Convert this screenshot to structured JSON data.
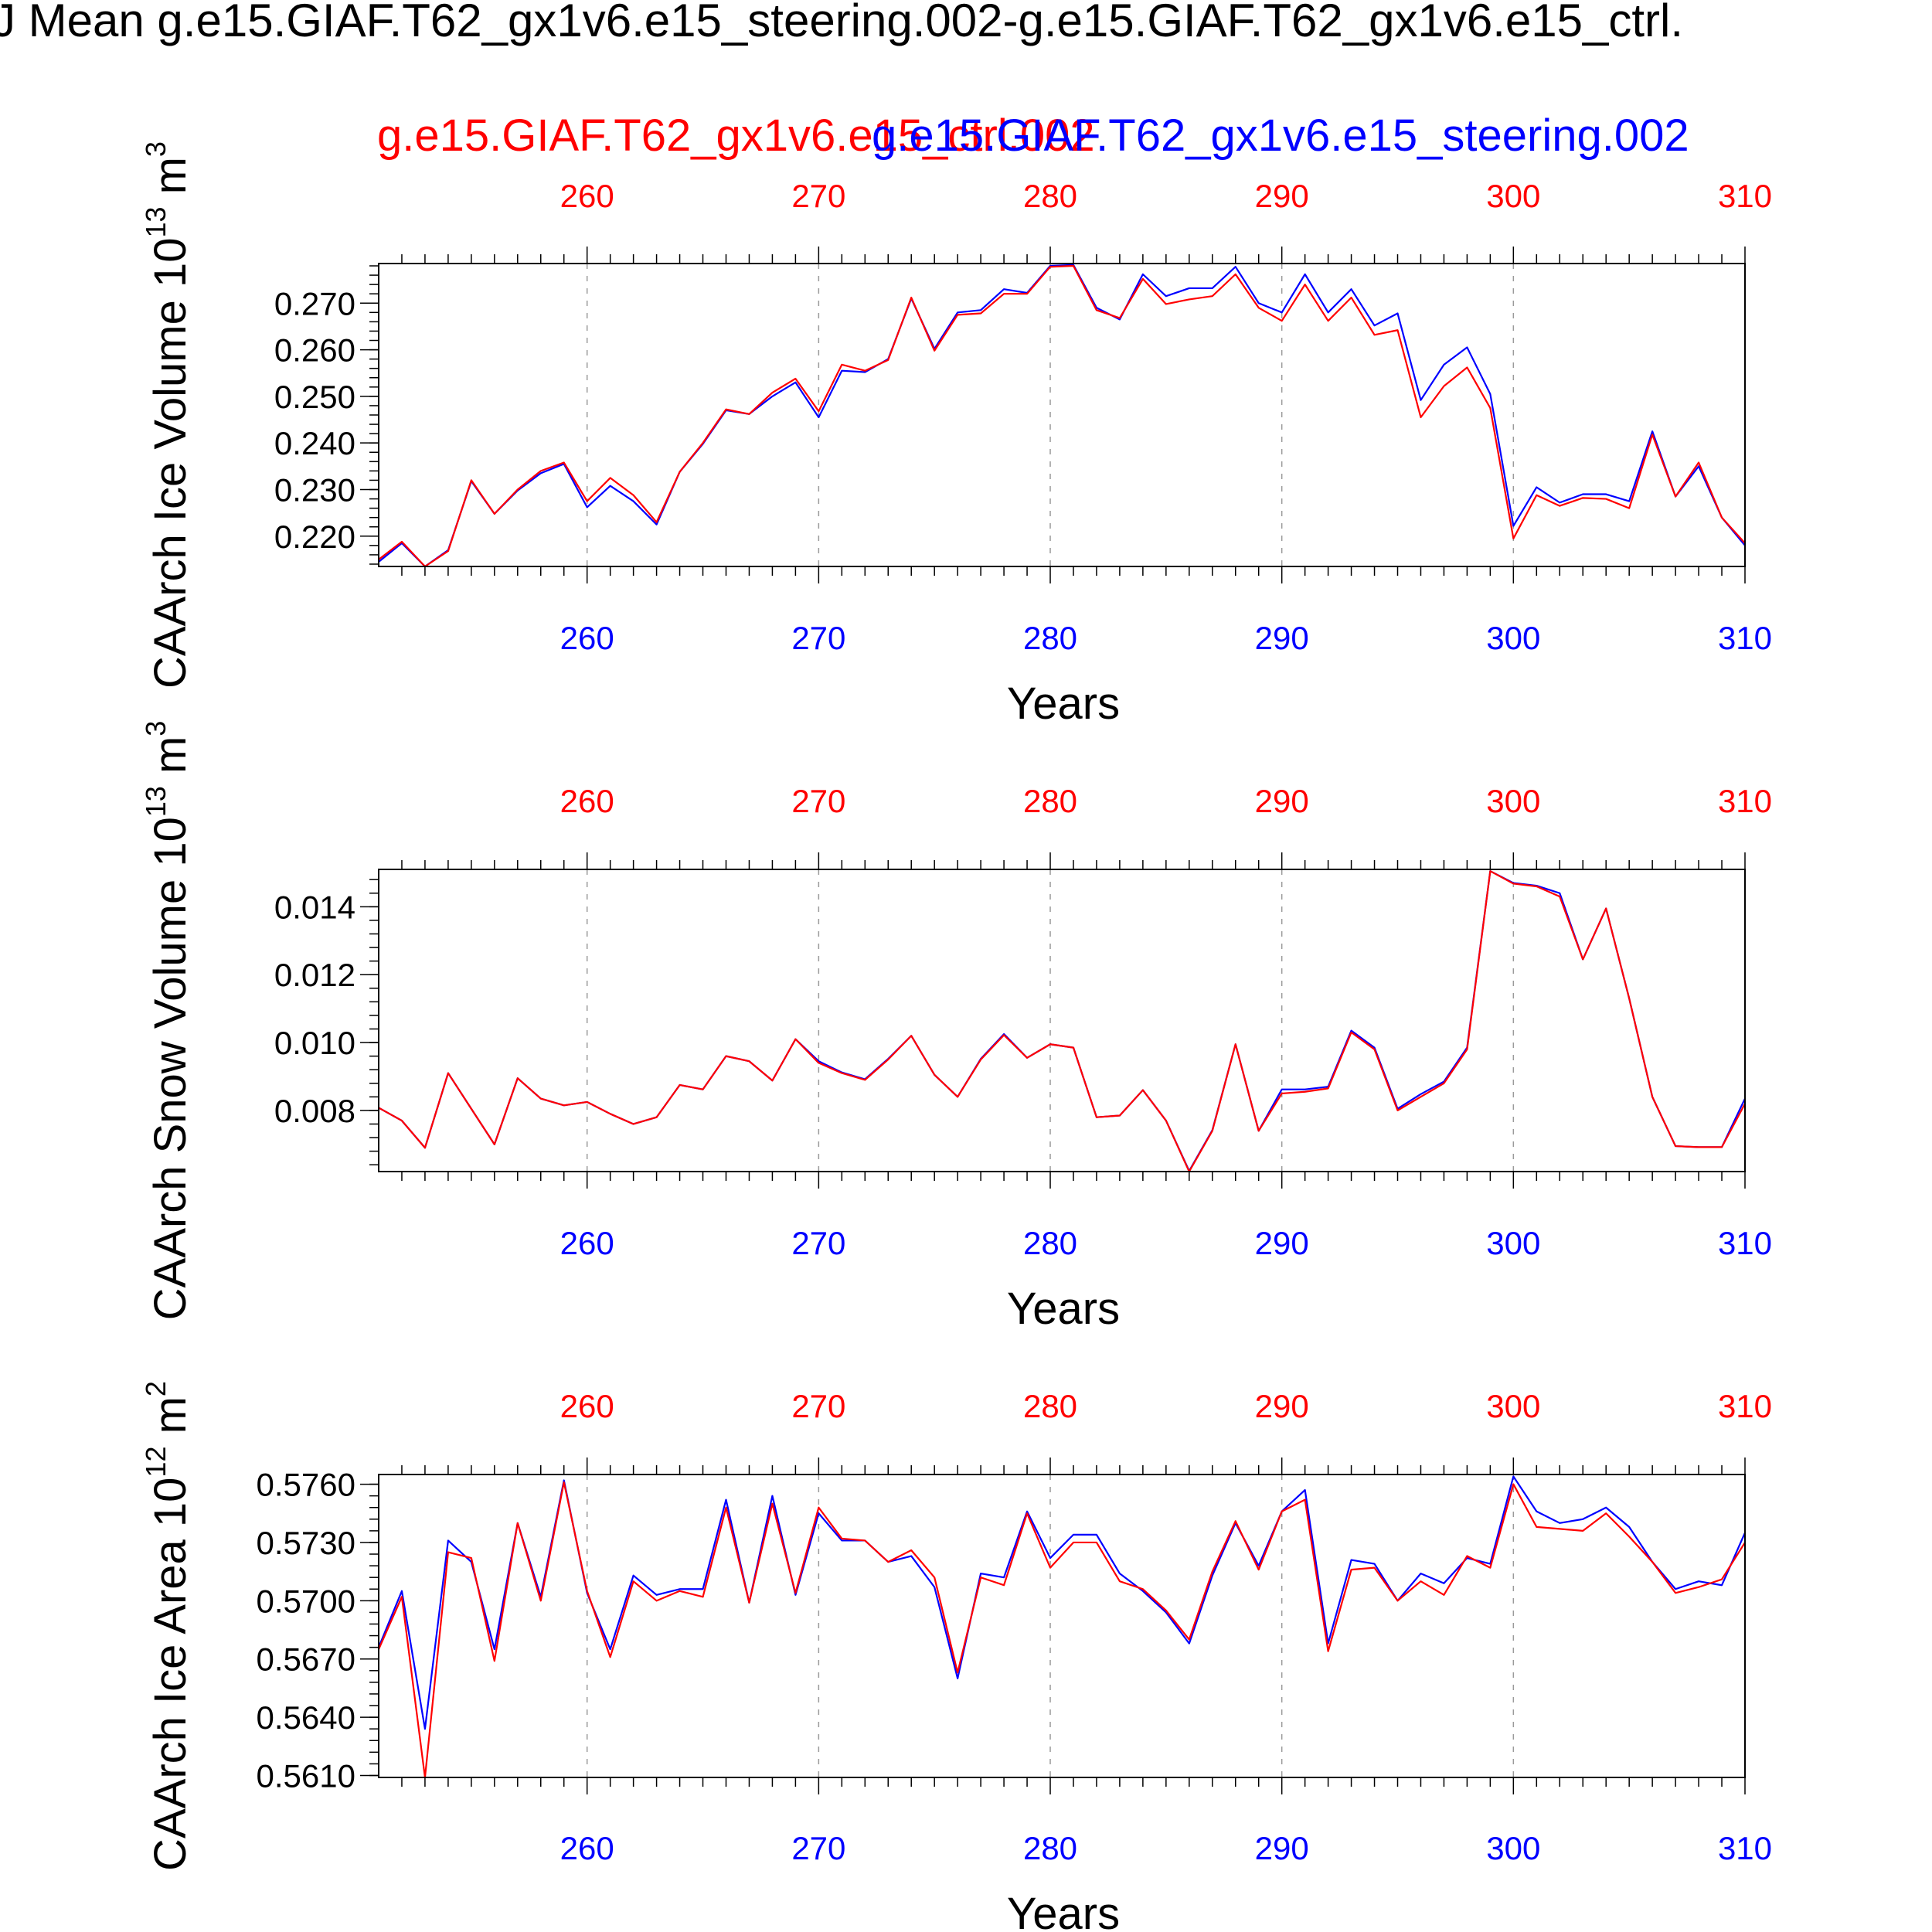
{
  "title": "J Mean g.e15.GIAF.T62_gx1v6.e15_steering.002-g.e15.GIAF.T62_gx1v6.e15_ctrl.",
  "legend": {
    "red_run": "g.e15.GIAF.T62_gx1v6.e15_ctrl.002",
    "blue_run": "g.e15.GIAF.T62_gx1v6.e15_steering.002"
  },
  "colors": {
    "ctrl": "#ff0000",
    "steering": "#0000ff"
  },
  "chart_data": [
    {
      "type": "line",
      "ylabel": "CAArch Ice Volume 10^13 m^3",
      "ylabel_main": "CAArch Ice Volume 10",
      "ylabel_exp": "13",
      "ylabel_unit": " m",
      "ylabel_unit_exp": "3",
      "xlabel": "Years",
      "xlim": [
        251,
        310
      ],
      "ylim": [
        0.2135,
        0.2785
      ],
      "yticks": [
        0.22,
        0.23,
        0.24,
        0.25,
        0.26,
        0.27
      ],
      "ytick_labels": [
        "0.220",
        "0.230",
        "0.240",
        "0.250",
        "0.260",
        "0.270"
      ],
      "yminor_step": 0.002,
      "xticks": [
        260,
        270,
        280,
        290,
        300,
        310
      ],
      "xtick_labels": [
        "260",
        "270",
        "280",
        "290",
        "300",
        "310"
      ],
      "x": [
        251,
        252,
        253,
        254,
        255,
        256,
        257,
        258,
        259,
        260,
        261,
        262,
        263,
        264,
        265,
        266,
        267,
        268,
        269,
        270,
        271,
        272,
        273,
        274,
        275,
        276,
        277,
        278,
        279,
        280,
        281,
        282,
        283,
        284,
        285,
        286,
        287,
        288,
        289,
        290,
        291,
        292,
        293,
        294,
        295,
        296,
        297,
        298,
        299,
        300,
        301,
        302,
        303,
        304,
        305,
        306,
        307,
        308,
        309,
        310
      ],
      "series": [
        {
          "name": "g.e15.GIAF.T62_gx1v6.e15_ctrl.002",
          "color": "#ff0000",
          "values": [
            0.215,
            0.2188,
            0.2135,
            0.2168,
            0.232,
            0.2248,
            0.23,
            0.234,
            0.2358,
            0.2275,
            0.2325,
            0.2288,
            0.223,
            0.2338,
            0.24,
            0.2472,
            0.2462,
            0.2508,
            0.2538,
            0.2468,
            0.2568,
            0.2555,
            0.2578,
            0.2712,
            0.2598,
            0.2675,
            0.2678,
            0.272,
            0.272,
            0.2778,
            0.278,
            0.2685,
            0.2668,
            0.2752,
            0.2698,
            0.2708,
            0.2715,
            0.2762,
            0.269,
            0.2662,
            0.274,
            0.2662,
            0.2712,
            0.2632,
            0.2642,
            0.2455,
            0.2522,
            0.2562,
            0.2475,
            0.2195,
            0.2288,
            0.2265,
            0.2282,
            0.228,
            0.226,
            0.2418,
            0.2285,
            0.2358,
            0.224,
            0.2185
          ]
        },
        {
          "name": "g.e15.GIAF.T62_gx1v6.e15_steering.002",
          "color": "#0000ff",
          "values": [
            0.2145,
            0.2185,
            0.2135,
            0.217,
            0.2318,
            0.2248,
            0.2298,
            0.2335,
            0.2355,
            0.2262,
            0.2308,
            0.2275,
            0.2225,
            0.2338,
            0.2398,
            0.247,
            0.2462,
            0.25,
            0.253,
            0.2455,
            0.2555,
            0.2552,
            0.258,
            0.271,
            0.2602,
            0.268,
            0.2685,
            0.273,
            0.2722,
            0.278,
            0.2782,
            0.269,
            0.2665,
            0.2762,
            0.2715,
            0.2732,
            0.2732,
            0.2778,
            0.27,
            0.268,
            0.2762,
            0.268,
            0.273,
            0.2652,
            0.2678,
            0.2492,
            0.2568,
            0.2605,
            0.2505,
            0.2222,
            0.2305,
            0.2272,
            0.229,
            0.229,
            0.2275,
            0.2425,
            0.2285,
            0.235,
            0.224,
            0.218
          ]
        }
      ]
    },
    {
      "type": "line",
      "ylabel": "CAArch Snow Volume 10^13 m^3",
      "ylabel_main": "CAArch Snow Volume 10",
      "ylabel_exp": "13",
      "ylabel_unit": " m",
      "ylabel_unit_exp": "3",
      "xlabel": "Years",
      "xlim": [
        251,
        310
      ],
      "ylim": [
        0.0062,
        0.0151
      ],
      "yticks": [
        0.008,
        0.01,
        0.012,
        0.014
      ],
      "ytick_labels": [
        "0.008",
        "0.010",
        "0.012",
        "0.014"
      ],
      "yminor_step": 0.0004,
      "xticks": [
        260,
        270,
        280,
        290,
        300,
        310
      ],
      "xtick_labels": [
        "260",
        "270",
        "280",
        "290",
        "300",
        "310"
      ],
      "x": [
        251,
        252,
        253,
        254,
        255,
        256,
        257,
        258,
        259,
        260,
        261,
        262,
        263,
        264,
        265,
        266,
        267,
        268,
        269,
        270,
        271,
        272,
        273,
        274,
        275,
        276,
        277,
        278,
        279,
        280,
        281,
        282,
        283,
        284,
        285,
        286,
        287,
        288,
        289,
        290,
        291,
        292,
        293,
        294,
        295,
        296,
        297,
        298,
        299,
        300,
        301,
        302,
        303,
        304,
        305,
        306,
        307,
        308,
        309,
        310
      ],
      "series": [
        {
          "name": "g.e15.GIAF.T62_gx1v6.e15_ctrl.002",
          "color": "#ff0000",
          "values": [
            0.00808,
            0.0077,
            0.0069,
            0.0091,
            0.00805,
            0.007,
            0.00895,
            0.00835,
            0.00815,
            0.00825,
            0.0079,
            0.0076,
            0.0078,
            0.00875,
            0.00862,
            0.0096,
            0.00945,
            0.00888,
            0.0101,
            0.0094,
            0.0091,
            0.0089,
            0.0095,
            0.0102,
            0.00905,
            0.0084,
            0.0095,
            0.01022,
            0.00955,
            0.00995,
            0.00985,
            0.0078,
            0.00785,
            0.0086,
            0.0077,
            0.0062,
            0.0074,
            0.00995,
            0.0074,
            0.0085,
            0.00855,
            0.00865,
            0.0103,
            0.0098,
            0.008,
            0.0084,
            0.0088,
            0.0098,
            0.01505,
            0.01468,
            0.0146,
            0.0143,
            0.01245,
            0.01395,
            0.0113,
            0.0084,
            0.00695,
            0.00692,
            0.00692,
            0.0082
          ]
        },
        {
          "name": "g.e15.GIAF.T62_gx1v6.e15_steering.002",
          "color": "#0000ff",
          "values": [
            0.00808,
            0.0077,
            0.0069,
            0.0091,
            0.00805,
            0.007,
            0.00895,
            0.00835,
            0.00815,
            0.00825,
            0.0079,
            0.0076,
            0.0078,
            0.00875,
            0.00862,
            0.0096,
            0.00945,
            0.00888,
            0.0101,
            0.00945,
            0.00912,
            0.00892,
            0.00952,
            0.0102,
            0.00905,
            0.0084,
            0.00952,
            0.01025,
            0.00955,
            0.00995,
            0.00985,
            0.0078,
            0.00785,
            0.0086,
            0.0077,
            0.00622,
            0.00742,
            0.00995,
            0.0074,
            0.00862,
            0.00862,
            0.0087,
            0.01035,
            0.00985,
            0.00805,
            0.00848,
            0.00885,
            0.00985,
            0.01505,
            0.0147,
            0.01462,
            0.0144,
            0.01245,
            0.01395,
            0.0113,
            0.0084,
            0.00695,
            0.00692,
            0.00692,
            0.00835
          ]
        }
      ]
    },
    {
      "type": "line",
      "ylabel": "CAArch Ice Area 10^12 m^2",
      "ylabel_main": "CAArch Ice Area 10",
      "ylabel_exp": "12",
      "ylabel_unit": " m",
      "ylabel_unit_exp": "2",
      "xlabel": "Years",
      "xlim": [
        251,
        310
      ],
      "ylim": [
        0.5609,
        0.5765
      ],
      "yticks": [
        0.561,
        0.564,
        0.567,
        0.57,
        0.573,
        0.576
      ],
      "ytick_labels": [
        "0.5610",
        "0.5640",
        "0.5670",
        "0.5700",
        "0.5730",
        "0.5760"
      ],
      "yminor_step": 0.0006,
      "xticks": [
        260,
        270,
        280,
        290,
        300,
        310
      ],
      "xtick_labels": [
        "260",
        "270",
        "280",
        "290",
        "300",
        "310"
      ],
      "x": [
        251,
        252,
        253,
        254,
        255,
        256,
        257,
        258,
        259,
        260,
        261,
        262,
        263,
        264,
        265,
        266,
        267,
        268,
        269,
        270,
        271,
        272,
        273,
        274,
        275,
        276,
        277,
        278,
        279,
        280,
        281,
        282,
        283,
        284,
        285,
        286,
        287,
        288,
        289,
        290,
        291,
        292,
        293,
        294,
        295,
        296,
        297,
        298,
        299,
        300,
        301,
        302,
        303,
        304,
        305,
        306,
        307,
        308,
        309,
        310
      ],
      "series": [
        {
          "name": "g.e15.GIAF.T62_gx1v6.e15_ctrl.002",
          "color": "#ff0000",
          "values": [
            0.5675,
            0.5702,
            0.5609,
            0.5725,
            0.5722,
            0.5669,
            0.574,
            0.57,
            0.5761,
            0.5705,
            0.5671,
            0.571,
            0.57,
            0.5705,
            0.5702,
            0.5748,
            0.5699,
            0.575,
            0.5704,
            0.5748,
            0.5732,
            0.5731,
            0.572,
            0.5726,
            0.5712,
            0.5663,
            0.5712,
            0.5708,
            0.5745,
            0.5717,
            0.573,
            0.573,
            0.571,
            0.5706,
            0.5695,
            0.568,
            0.5715,
            0.5741,
            0.5716,
            0.5746,
            0.5752,
            0.5674,
            0.5716,
            0.5717,
            0.57,
            0.571,
            0.5703,
            0.5723,
            0.5717,
            0.576,
            0.5738,
            0.5737,
            0.5736,
            0.5745,
            0.5733,
            0.572,
            0.5704,
            0.5707,
            0.5711,
            0.573
          ]
        },
        {
          "name": "g.e15.GIAF.T62_gx1v6.e15_steering.002",
          "color": "#0000ff",
          "values": [
            0.5676,
            0.5705,
            0.5634,
            0.5731,
            0.572,
            0.5675,
            0.574,
            0.5702,
            0.5762,
            0.5704,
            0.5675,
            0.5713,
            0.5703,
            0.5706,
            0.5706,
            0.5752,
            0.5699,
            0.5754,
            0.5703,
            0.5745,
            0.5731,
            0.5731,
            0.572,
            0.5723,
            0.5707,
            0.566,
            0.5714,
            0.5712,
            0.5746,
            0.5722,
            0.5734,
            0.5734,
            0.5714,
            0.5705,
            0.5694,
            0.5678,
            0.5713,
            0.574,
            0.5718,
            0.5746,
            0.5757,
            0.5678,
            0.5721,
            0.5719,
            0.57,
            0.5714,
            0.5709,
            0.5722,
            0.5719,
            0.5764,
            0.5746,
            0.574,
            0.5742,
            0.5748,
            0.5738,
            0.572,
            0.5706,
            0.571,
            0.5708,
            0.5735
          ]
        }
      ]
    }
  ]
}
